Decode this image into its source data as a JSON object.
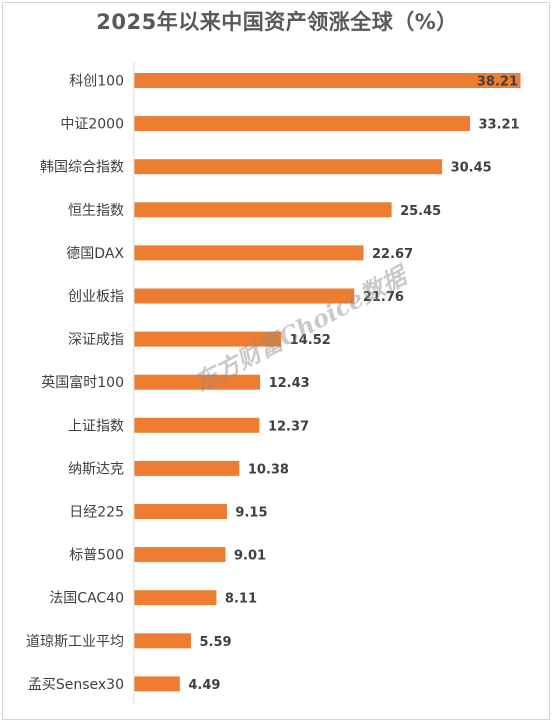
{
  "chart_data": {
    "type": "bar",
    "orientation": "horizontal",
    "title": "2025年以来中国资产领涨全球（%）",
    "categories": [
      "科创100",
      "中证2000",
      "韩国综合指数",
      "恒生指数",
      "德国DAX",
      "创业板指",
      "深证成指",
      "英国富时100",
      "上证指数",
      "纳斯达克",
      "日经225",
      "标普500",
      "法国CAC40",
      "道琼斯工业平均",
      "孟买Sensex30"
    ],
    "values": [
      38.21,
      33.21,
      30.45,
      25.45,
      22.67,
      21.76,
      14.52,
      12.43,
      12.37,
      10.38,
      9.15,
      9.01,
      8.11,
      5.59,
      4.49
    ],
    "value_labels": [
      "38.21",
      "33.21",
      "30.45",
      "25.45",
      "22.67",
      "21.76",
      "14.52",
      "12.43",
      "12.37",
      "10.38",
      "9.15",
      "9.01",
      "8.11",
      "5.59",
      "4.49"
    ],
    "xlim": [
      0,
      38.21
    ],
    "grid": false,
    "legend": "none",
    "bar_color": "#ED7D31",
    "axis_color": "#D9D9D9",
    "watermark": "东方财富Choice数据"
  }
}
